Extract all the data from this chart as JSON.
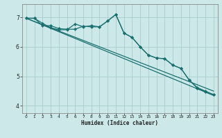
{
  "title": "",
  "xlabel": "Humidex (Indice chaleur)",
  "ylabel": "",
  "background_color": "#cce8e8",
  "grid_color": "#aacccc",
  "line_color": "#1a7070",
  "xlim": [
    -0.5,
    23.5
  ],
  "ylim": [
    3.75,
    7.45
  ],
  "yticks": [
    4,
    5,
    6,
    7
  ],
  "xticks": [
    0,
    1,
    2,
    3,
    4,
    5,
    6,
    7,
    8,
    9,
    10,
    11,
    12,
    13,
    14,
    15,
    16,
    17,
    18,
    19,
    20,
    21,
    22,
    23
  ],
  "series1_x": [
    0,
    1,
    2,
    3,
    4,
    5,
    6,
    7,
    8,
    9,
    10,
    11,
    12,
    13,
    14,
    15,
    16,
    17,
    18,
    19,
    20,
    21,
    22,
    23
  ],
  "series1_y": [
    6.97,
    6.97,
    6.72,
    6.72,
    6.62,
    6.6,
    6.6,
    6.7,
    6.68,
    6.68,
    6.88,
    7.1,
    6.47,
    6.32,
    6.0,
    5.72,
    5.62,
    5.6,
    5.38,
    5.27,
    4.88,
    4.62,
    4.5,
    4.38
  ],
  "series2_x": [
    0,
    1,
    2,
    3,
    4,
    5,
    6,
    7,
    8,
    9,
    10,
    11,
    12,
    13,
    14,
    15,
    16,
    17,
    18,
    19,
    20,
    21,
    22,
    23
  ],
  "series2_y": [
    6.97,
    6.97,
    6.8,
    6.65,
    6.58,
    6.58,
    6.78,
    6.68,
    6.72,
    6.68,
    6.88,
    7.1,
    6.47,
    6.32,
    6.0,
    5.72,
    5.62,
    5.6,
    5.38,
    5.27,
    4.88,
    4.6,
    4.48,
    4.38
  ],
  "series3_x": [
    0,
    23
  ],
  "series3_y": [
    6.97,
    4.35
  ],
  "series4_x": [
    0,
    23
  ],
  "series4_y": [
    6.97,
    4.5
  ]
}
